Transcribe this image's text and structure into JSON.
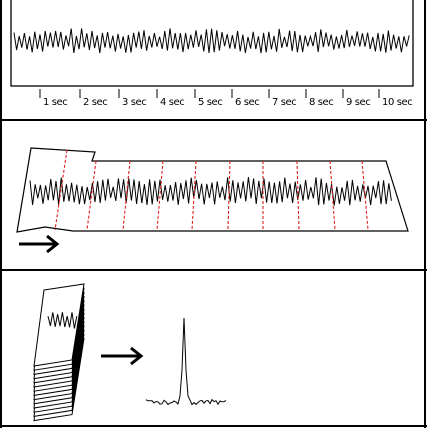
{
  "panel_top": {
    "time_labels": [
      "1 sec",
      "2 sec",
      "3 sec",
      "4 sec",
      "5 sec",
      "6 sec",
      "7 sec",
      "8 sec",
      "9 sec",
      "10 sec"
    ]
  },
  "panel_middle": {
    "segments": 10,
    "arrow": "right-arrow-icon"
  },
  "panel_bottom": {
    "stack_layers": 14,
    "arrow": "right-arrow-icon",
    "spectrum": "single-peak"
  },
  "colors": {
    "ink": "#000000",
    "segment_divider": "#e0201a",
    "background": "#ffffff"
  }
}
